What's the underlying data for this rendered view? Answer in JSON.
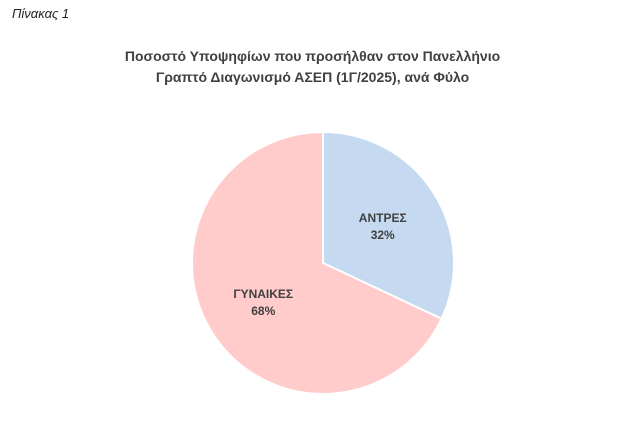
{
  "caption": "Πίνακας 1",
  "chart_data": {
    "type": "pie",
    "title_line1": "Ποσοστό Υποψηφίων που προσήλθαν στον Πανελλήνιο",
    "title_line2": "Γραπτό Διαγωνισμό ΑΣΕΠ (1Γ/2025), ανά Φύλο",
    "slices": [
      {
        "category": "ΑΝΤΡΕΣ",
        "value": 32,
        "value_label": "32%",
        "color": "#c5d9f0"
      },
      {
        "category": "ΓΥΝΑΙΚΕΣ",
        "value": 68,
        "value_label": "68%",
        "color": "#ffcccb"
      }
    ]
  }
}
